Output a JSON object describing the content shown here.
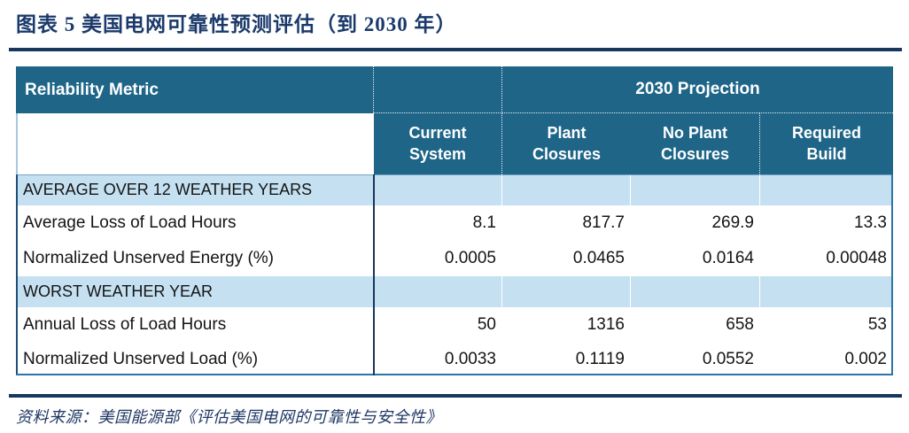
{
  "title": "图表 5  美国电网可靠性预测评估（到 2030 年）",
  "source": "资料来源：美国能源部《评估美国电网的可靠性与安全性》",
  "table": {
    "corner_header": "Reliability Metric",
    "projection_header": "2030 Projection",
    "columns": [
      "Current System",
      "Plant Closures",
      "No Plant Closures",
      "Required Build"
    ],
    "sections": [
      {
        "label": "AVERAGE OVER 12 WEATHER YEARS",
        "rows": [
          {
            "label": "Average Loss of Load Hours",
            "values": [
              "8.1",
              "817.7",
              "269.9",
              "13.3"
            ]
          },
          {
            "label": "Normalized Unserved Energy (%)",
            "values": [
              "0.0005",
              "0.0465",
              "0.0164",
              "0.00048"
            ]
          }
        ]
      },
      {
        "label": "WORST WEATHER YEAR",
        "rows": [
          {
            "label": "Annual Loss of Load Hours",
            "values": [
              "50",
              "1316",
              "658",
              "53"
            ]
          },
          {
            "label": "Normalized Unserved Load (%)",
            "values": [
              "0.0033",
              "0.1119",
              "0.0552",
              "0.002"
            ]
          }
        ]
      }
    ]
  },
  "colors": {
    "header_bg": "#1E6588",
    "section_row_bg": "#C5E1F1",
    "accent_navy": "#17375E",
    "table_border_blue": "#2E74A8",
    "title_navy": "#1B3A6B"
  }
}
